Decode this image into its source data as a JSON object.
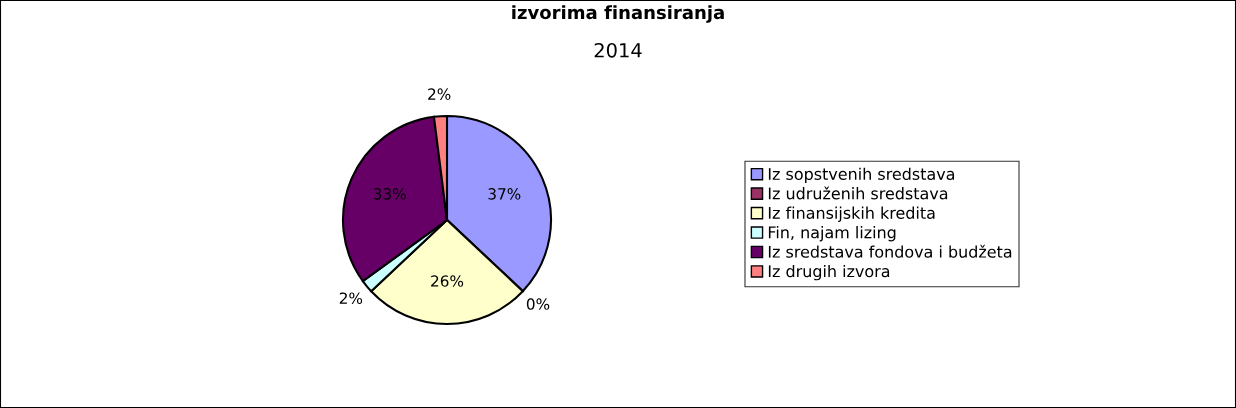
{
  "chart_data": {
    "type": "pie",
    "title": "izvorima finansiranja",
    "subtitle": "2014",
    "categories": [
      "Iz sopstvenih sredstava",
      "Iz udruženih sredstava",
      "Iz finansijskih kredita",
      "Fin, najam lizing",
      "Iz sredstava fondova i budžeta",
      "Iz drugih izvora"
    ],
    "values": [
      37,
      0,
      26,
      2,
      33,
      2
    ],
    "colors": [
      "#9999ff",
      "#993366",
      "#ffffcc",
      "#ccffff",
      "#660066",
      "#ff8080"
    ],
    "value_labels": [
      "37%",
      "0%",
      "26%",
      "2%",
      "33%",
      "2%"
    ],
    "legend": "right"
  }
}
